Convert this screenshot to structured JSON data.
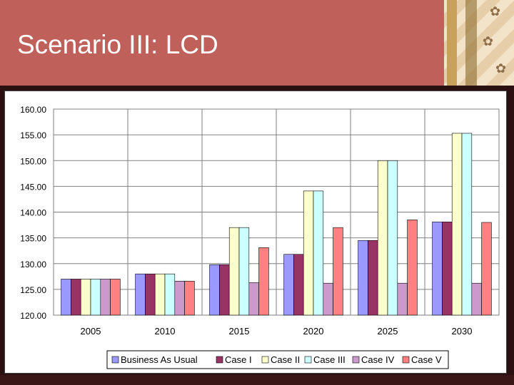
{
  "slide": {
    "title": "Scenario III: LCD"
  },
  "chart_data": {
    "type": "bar",
    "categories": [
      "2005",
      "2010",
      "2015",
      "2020",
      "2025",
      "2030"
    ],
    "ylim": [
      120.0,
      160.0
    ],
    "yticks": [
      "120.00",
      "125.00",
      "130.00",
      "135.00",
      "140.00",
      "145.00",
      "150.00",
      "155.00",
      "160.00"
    ],
    "grid": true,
    "legend_position": "bottom",
    "series": [
      {
        "name": "Business As Usual",
        "color": "#9999ff",
        "values": [
          127.0,
          128.0,
          129.8,
          131.8,
          134.5,
          138.1
        ]
      },
      {
        "name": "Case I",
        "color": "#993366",
        "values": [
          127.0,
          128.0,
          129.8,
          131.8,
          134.5,
          138.1
        ]
      },
      {
        "name": "Case II",
        "color": "#ffffcc",
        "values": [
          127.0,
          128.0,
          137.0,
          144.1,
          150.0,
          155.3
        ]
      },
      {
        "name": "Case III",
        "color": "#ccffff",
        "values": [
          127.0,
          128.0,
          137.0,
          144.1,
          150.0,
          155.3
        ]
      },
      {
        "name": "Case IV",
        "color": "#cc99cc",
        "values": [
          127.0,
          126.6,
          126.3,
          126.2,
          126.2,
          126.2
        ]
      },
      {
        "name": "Case V",
        "color": "#ff8080",
        "values": [
          127.0,
          126.6,
          133.1,
          137.0,
          138.5,
          138.0
        ]
      }
    ]
  }
}
